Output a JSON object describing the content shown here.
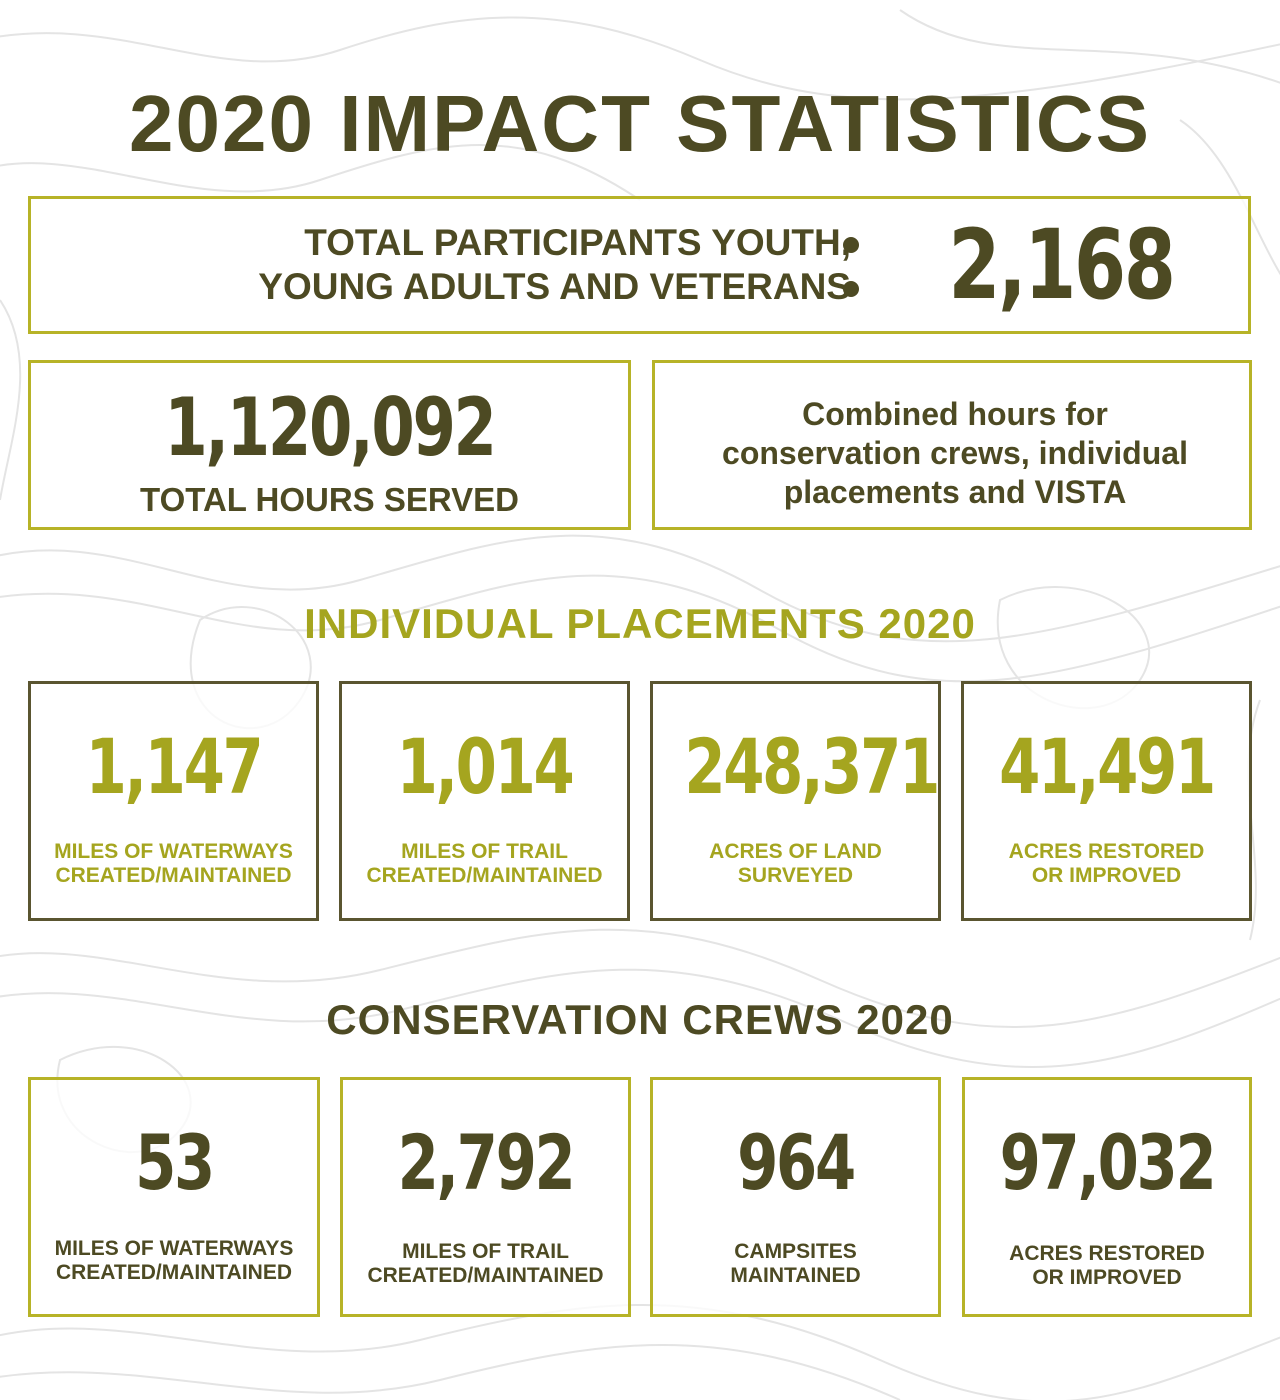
{
  "title": "2020 IMPACT STATISTICS",
  "participants": {
    "label_line1": "TOTAL PARTICIPANTS YOUTH,",
    "label_line2": "YOUNG ADULTS AND VETERANS",
    "value": "2,168"
  },
  "hours": {
    "value": "1,120,092",
    "label": "TOTAL HOURS SERVED",
    "note_line1": "Combined hours for",
    "note_line2": "conservation crews, individual",
    "note_line3": "placements and VISTA"
  },
  "individual": {
    "heading": "INDIVIDUAL PLACEMENTS 2020",
    "stats": [
      {
        "value": "1,147",
        "line1": "MILES OF WATERWAYS",
        "line2": "CREATED/MAINTAINED"
      },
      {
        "value": "1,014",
        "line1": "MILES OF TRAIL",
        "line2": "CREATED/MAINTAINED"
      },
      {
        "value": "248,371",
        "line1": "ACRES OF LAND",
        "line2": "SURVEYED"
      },
      {
        "value": "41,491",
        "line1": "ACRES RESTORED",
        "line2": "OR IMPROVED"
      }
    ]
  },
  "crews": {
    "heading": "CONSERVATION CREWS 2020",
    "stats": [
      {
        "value": "53",
        "line1": "MILES OF WATERWAYS",
        "line2": "CREATED/MAINTAINED"
      },
      {
        "value": "2,792",
        "line1": "MILES OF TRAIL",
        "line2": "CREATED/MAINTAINED"
      },
      {
        "value": "964",
        "line1": "CAMPSITES",
        "line2": "MAINTAINED"
      },
      {
        "value": "97,032",
        "line1": "ACRES RESTORED",
        "line2": "OR IMPROVED"
      }
    ]
  },
  "colors": {
    "dark_olive": "#4d4a23",
    "accent_olive": "#a5a51f",
    "border_olive": "#b7b327",
    "background": "#ffffff"
  }
}
